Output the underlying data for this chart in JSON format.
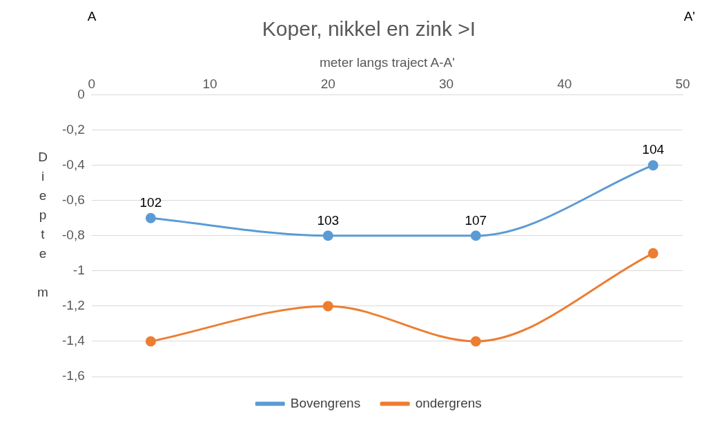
{
  "chart_data": {
    "type": "line",
    "title": "Koper, nikkel en zink >I",
    "xlabel": "meter langs traject A-A'",
    "ylabel": "Diepte m",
    "xlim": [
      0,
      50
    ],
    "xticks": [
      0,
      10,
      20,
      30,
      40,
      50
    ],
    "ylim": [
      -1.6,
      0
    ],
    "yticks": [
      {
        "value": 0,
        "label": "0"
      },
      {
        "value": -0.2,
        "label": "-0,2"
      },
      {
        "value": -0.4,
        "label": "-0,4"
      },
      {
        "value": -0.6,
        "label": "-0,6"
      },
      {
        "value": -0.8,
        "label": "-0,8"
      },
      {
        "value": -1,
        "label": "-1"
      },
      {
        "value": -1.2,
        "label": "-1,2"
      },
      {
        "value": -1.4,
        "label": "-1,4"
      },
      {
        "value": -1.6,
        "label": "-1,6"
      }
    ],
    "x": [
      5,
      20,
      32.5,
      47.5
    ],
    "series": [
      {
        "name": "Bovengrens",
        "color": "#5b9bd5",
        "values": [
          -0.7,
          -0.8,
          -0.8,
          -0.4
        ]
      },
      {
        "name": "ondergrens",
        "color": "#ed7d31",
        "values": [
          -1.4,
          -1.2,
          -1.4,
          -0.9
        ]
      }
    ],
    "annotations": [
      "A",
      "A'",
      {
        "text": "102",
        "x": 5,
        "y": -0.7
      },
      {
        "text": "103",
        "x": 20,
        "y": -0.8
      },
      {
        "text": "107",
        "x": 32.5,
        "y": -0.8
      },
      {
        "text": "104",
        "x": 47.5,
        "y": -0.4
      }
    ],
    "grid": "y",
    "legend": "bottom",
    "marker": "circle",
    "line_style": "solid"
  }
}
